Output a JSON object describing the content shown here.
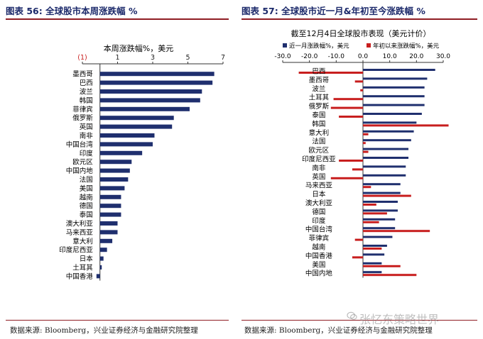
{
  "left": {
    "fig_title": "图表 56:  全球股市本周涨跌幅  %",
    "source": "数据来源: Bloomberg，兴业证券经济与金融研究院整理"
  },
  "right": {
    "fig_title": "图表 57:  全球股市近一月&年初至今涨跌幅  %",
    "source": "数据来源: Bloomberg，兴业证券经济与金融研究院整理"
  },
  "watermark": "张忆东策略世界",
  "colors": {
    "navy": "#1f2f6e",
    "red": "#c81e1e",
    "title": "#1c2a6b",
    "rule": "#8f1d24"
  },
  "chart_data": [
    {
      "type": "bar",
      "orientation": "horizontal",
      "title": "本周涨跌幅%，美元",
      "xlim": [
        -1,
        7
      ],
      "xticks": [
        -1,
        1,
        3,
        5,
        7
      ],
      "xtick_labels": [
        "(1)",
        "1",
        "3",
        "5",
        "7"
      ],
      "categories": [
        "墨西哥",
        "巴西",
        "波兰",
        "韩国",
        "菲律宾",
        "俄罗斯",
        "英国",
        "南非",
        "中国台湾",
        "印度",
        "欧元区",
        "中国内地",
        "法国",
        "美国",
        "越南",
        "德国",
        "泰国",
        "澳大利亚",
        "马来西亚",
        "意大利",
        "印度尼西亚",
        "日本",
        "土耳其",
        "中国香港"
      ],
      "values": [
        6.5,
        6.4,
        5.8,
        5.7,
        5.1,
        4.2,
        4.1,
        3.1,
        3.0,
        2.4,
        1.8,
        1.7,
        1.6,
        1.4,
        1.2,
        1.2,
        1.2,
        1.0,
        1.0,
        0.7,
        0.4,
        0.2,
        0.1,
        -0.2
      ]
    },
    {
      "type": "bar",
      "orientation": "horizontal",
      "title": "截至12月4日全球股市表现（美元计价）",
      "xlim": [
        -30,
        30
      ],
      "xticks": [
        -30,
        -20,
        -10,
        0,
        10,
        20,
        30
      ],
      "xtick_labels": [
        "-30.0",
        "-20.0",
        "-10.0",
        "0.0",
        "10.0",
        "20.0",
        "30.0"
      ],
      "categories": [
        "巴西",
        "墨西哥",
        "波兰",
        "土耳其",
        "俄罗斯",
        "泰国",
        "韩国",
        "意大利",
        "法国",
        "欧元区",
        "印度尼西亚",
        "南非",
        "英国",
        "马来西亚",
        "日本",
        "澳大利亚",
        "德国",
        "印度",
        "中国台湾",
        "菲律宾",
        "越南",
        "中国香港",
        "美国",
        "中国内地"
      ],
      "series": [
        {
          "name": "近一月涨跌幅%，美元",
          "color": "#1f2f6e",
          "values": [
            27,
            24,
            23,
            23,
            23,
            22,
            20,
            19,
            18,
            17,
            17,
            16,
            16,
            14,
            14,
            13,
            13,
            12,
            12,
            11,
            9,
            8,
            7,
            7
          ]
        },
        {
          "name": "年初以来涨跌幅%，美元",
          "color": "#c81e1e",
          "values": [
            -24,
            -3,
            -1,
            -11,
            -12,
            -9,
            32,
            2,
            1,
            2,
            -9,
            -4,
            -12,
            3,
            18,
            5,
            9,
            6,
            25,
            -3,
            7,
            -4,
            14,
            20
          ]
        }
      ]
    }
  ]
}
